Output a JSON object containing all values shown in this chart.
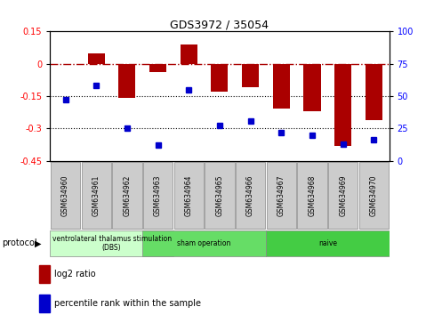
{
  "title": "GDS3972 / 35054",
  "samples": [
    "GSM634960",
    "GSM634961",
    "GSM634962",
    "GSM634963",
    "GSM634964",
    "GSM634965",
    "GSM634966",
    "GSM634967",
    "GSM634968",
    "GSM634969",
    "GSM634970"
  ],
  "log2_ratio": [
    0.0,
    0.05,
    -0.16,
    -0.04,
    0.09,
    -0.13,
    -0.11,
    -0.21,
    -0.22,
    -0.38,
    -0.26
  ],
  "percentile_rank": [
    47,
    58,
    25,
    12,
    55,
    27,
    31,
    22,
    20,
    13,
    16
  ],
  "bar_color": "#aa0000",
  "dot_color": "#0000cc",
  "ylim_left": [
    -0.45,
    0.15
  ],
  "ylim_right": [
    0,
    100
  ],
  "yticks_left": [
    0.15,
    0.0,
    -0.15,
    -0.3,
    -0.45
  ],
  "ytick_labels_left": [
    "0.15",
    "0",
    "-0.15",
    "-0.3",
    "-0.45"
  ],
  "yticks_right": [
    100,
    75,
    50,
    25,
    0
  ],
  "ytick_labels_right": [
    "100",
    "75",
    "50",
    "25",
    "0"
  ],
  "hline_y": 0.0,
  "dotted_lines": [
    -0.15,
    -0.3
  ],
  "grp_starts": [
    0,
    3,
    7
  ],
  "grp_ends": [
    4,
    7,
    11
  ],
  "grp_labels": [
    "ventrolateral thalamus stimulation\n(DBS)",
    "sham operation",
    "naive"
  ],
  "grp_colors": [
    "#ccffcc",
    "#66dd66",
    "#44cc44"
  ],
  "protocol_label": "protocol",
  "legend_bar_label": "log2 ratio",
  "legend_dot_label": "percentile rank within the sample",
  "background_color": "#ffffff",
  "sample_box_color": "#cccccc"
}
